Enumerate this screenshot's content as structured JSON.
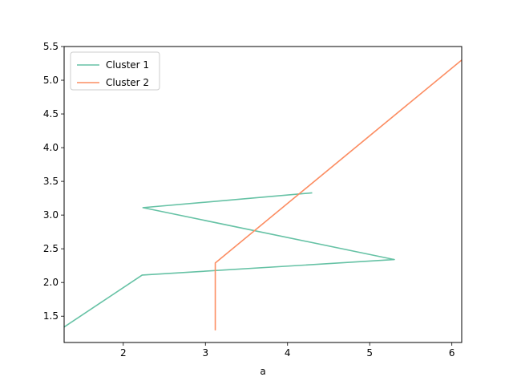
{
  "chart_data": {
    "type": "line",
    "title": "",
    "xlabel": "a",
    "ylabel": "",
    "xlim": [
      1.28,
      6.12
    ],
    "ylim": [
      1.11,
      5.5
    ],
    "xticks": [
      2,
      3,
      4,
      5,
      6
    ],
    "yticks": [
      1.5,
      2.0,
      2.5,
      3.0,
      3.5,
      4.0,
      4.5,
      5.0,
      5.5
    ],
    "grid": false,
    "legend": "top-left",
    "series": [
      {
        "name": "Cluster 1",
        "color": "#66c2a5",
        "x": [
          1.28,
          2.23,
          5.3,
          2.24,
          4.3
        ],
        "y": [
          1.34,
          2.11,
          2.34,
          3.11,
          3.33
        ]
      },
      {
        "name": "Cluster 2",
        "color": "#fc8d62",
        "x": [
          3.12,
          3.12,
          6.12
        ],
        "y": [
          1.29,
          2.29,
          5.3
        ]
      }
    ]
  }
}
